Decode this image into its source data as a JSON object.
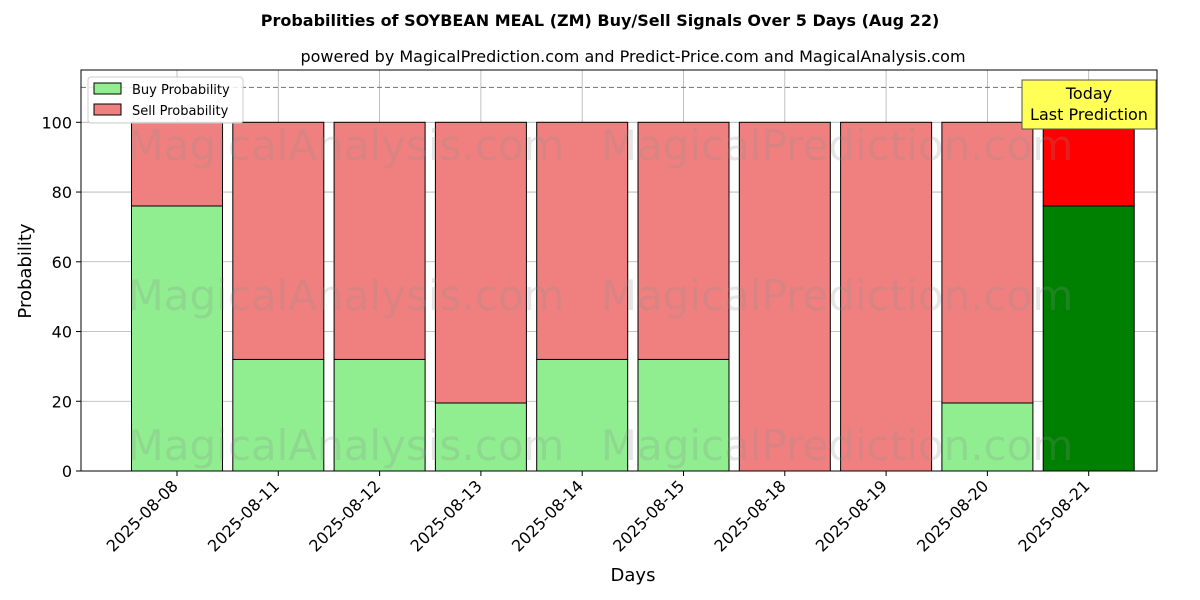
{
  "chart_data": {
    "type": "bar",
    "stacked": true,
    "title": "Probabilities of SOYBEAN MEAL (ZM) Buy/Sell Signals Over 5 Days (Aug 22)",
    "subtitle": "powered by MagicalPrediction.com and Predict-Price.com and MagicalAnalysis.com",
    "xlabel": "Days",
    "ylabel": "Probability",
    "ylim": [
      0,
      115
    ],
    "yticks": [
      "0",
      "20",
      "40",
      "60",
      "80",
      "100"
    ],
    "categories": [
      "2025-08-08",
      "2025-08-11",
      "2025-08-12",
      "2025-08-13",
      "2025-08-14",
      "2025-08-15",
      "2025-08-18",
      "2025-08-19",
      "2025-08-20",
      "2025-08-21"
    ],
    "series": [
      {
        "name": "Buy Probability",
        "values": [
          76,
          32,
          32,
          19.5,
          32,
          32,
          0,
          0,
          19.5,
          76
        ],
        "color": "#90ee90",
        "highlight_color": "#008000"
      },
      {
        "name": "Sell Probability",
        "values": [
          24,
          68,
          68,
          80.5,
          68,
          68,
          100,
          100,
          80.5,
          24
        ],
        "color": "#f08080",
        "highlight_color": "#ff0000"
      }
    ],
    "highlight_index": 9,
    "reference_line": 110,
    "annotation": {
      "line1": "Today",
      "line2": "Last Prediction",
      "background": "#ffff55"
    },
    "grid": true,
    "legend_position": "top-left",
    "watermarks": [
      "MagicalAnalysis.com",
      "MagicalPrediction.com"
    ]
  }
}
